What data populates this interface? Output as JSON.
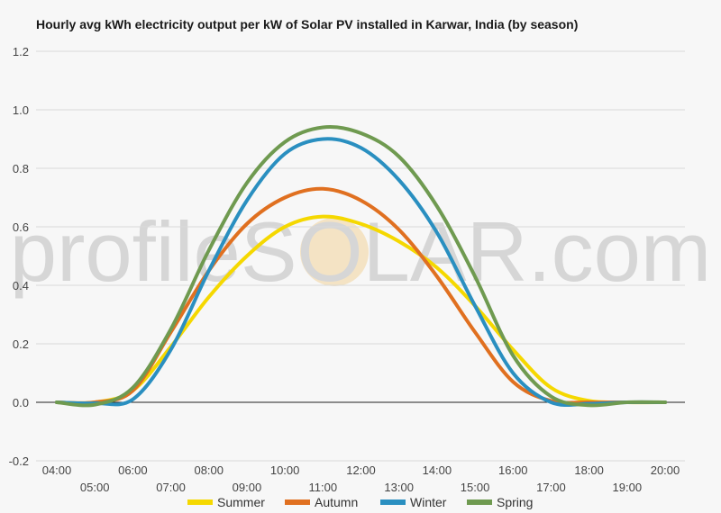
{
  "chart_data": {
    "type": "line",
    "title": "Hourly avg kWh electricity output per kW of Solar PV installed in Karwar, India (by season)",
    "xlabel": "",
    "ylabel": "",
    "x": [
      "04:00",
      "05:00",
      "06:00",
      "07:00",
      "08:00",
      "09:00",
      "10:00",
      "11:00",
      "12:00",
      "13:00",
      "14:00",
      "15:00",
      "16:00",
      "17:00",
      "18:00",
      "19:00",
      "20:00"
    ],
    "ylim": [
      -0.2,
      1.2
    ],
    "yticks": [
      "-0.2",
      "0.0",
      "0.2",
      "0.4",
      "0.6",
      "0.8",
      "1.0",
      "1.2"
    ],
    "grid": true,
    "legend_position": "bottom",
    "series": [
      {
        "name": "Summer",
        "color": "#f5d800",
        "values": [
          0.0,
          0.0,
          0.04,
          0.19,
          0.36,
          0.5,
          0.6,
          0.635,
          0.61,
          0.55,
          0.46,
          0.33,
          0.18,
          0.05,
          0.005,
          0.0,
          0.0
        ]
      },
      {
        "name": "Autumn",
        "color": "#e07020",
        "values": [
          0.0,
          0.0,
          0.04,
          0.24,
          0.45,
          0.61,
          0.7,
          0.73,
          0.69,
          0.59,
          0.43,
          0.24,
          0.07,
          0.005,
          0.0,
          0.0,
          0.0
        ]
      },
      {
        "name": "Winter",
        "color": "#2a8fc0",
        "values": [
          0.0,
          -0.003,
          0.01,
          0.18,
          0.45,
          0.69,
          0.85,
          0.9,
          0.87,
          0.76,
          0.58,
          0.33,
          0.1,
          0.0,
          -0.005,
          0.0,
          0.0
        ]
      },
      {
        "name": "Spring",
        "color": "#6f9a50",
        "values": [
          0.0,
          -0.008,
          0.05,
          0.25,
          0.52,
          0.75,
          0.89,
          0.94,
          0.92,
          0.84,
          0.67,
          0.43,
          0.16,
          0.02,
          -0.01,
          0.0,
          0.0
        ]
      }
    ],
    "watermark": "profileSOLAR.com"
  }
}
